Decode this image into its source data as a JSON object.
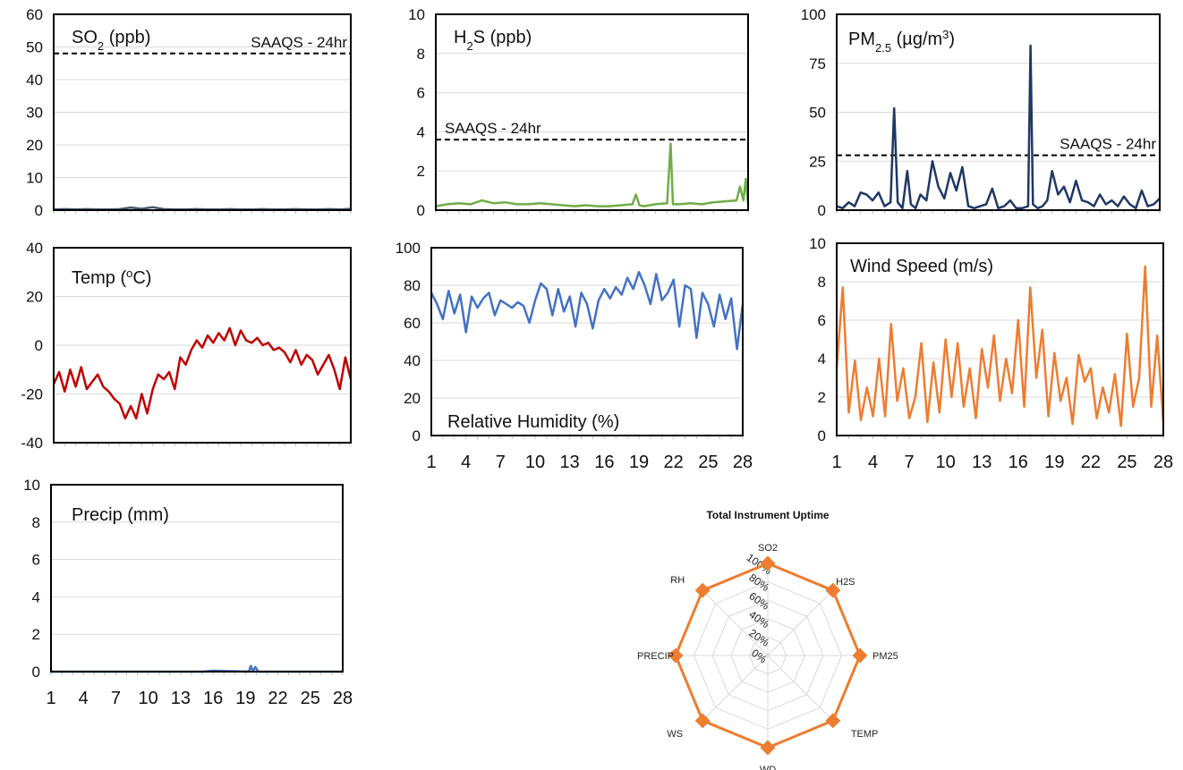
{
  "chart_data": [
    {
      "id": "so2",
      "type": "line",
      "title": "SO2 (ppb)",
      "title_main": "SO",
      "title_sub": "2",
      "title_rest": " (ppb)",
      "ylim": [
        0,
        60
      ],
      "yticks": [
        0,
        10,
        20,
        30,
        40,
        50,
        60
      ],
      "xticks": [],
      "color": "#44546a",
      "series": [
        {
          "x": [
            1,
            2,
            3,
            4,
            5,
            6,
            7,
            8,
            9,
            10,
            11,
            12,
            13,
            14,
            15,
            16,
            17,
            18,
            19,
            20,
            21,
            22,
            23,
            24,
            25,
            26,
            27,
            28
          ],
          "values": [
            0.2,
            0.3,
            0.2,
            0.3,
            0.2,
            0.2,
            0.3,
            0.8,
            0.4,
            0.9,
            0.3,
            0.2,
            0.2,
            0.3,
            0.2,
            0.2,
            0.3,
            0.2,
            0.2,
            0.3,
            0.2,
            0.2,
            0.3,
            0.2,
            0.2,
            0.3,
            0.2,
            0.4
          ]
        }
      ],
      "reference_line": {
        "value": 48,
        "label": "SAAQS - 24hr",
        "label_pos": "top-right"
      }
    },
    {
      "id": "h2s",
      "type": "line",
      "title": "H2S (ppb)",
      "title_main": "H",
      "title_sub": "2",
      "title_rest": "S (ppb)",
      "ylim": [
        0,
        10
      ],
      "yticks": [
        0,
        2,
        4,
        6,
        8,
        10
      ],
      "xticks": [],
      "color": "#70ad47",
      "series": [
        {
          "x": [
            1,
            2,
            3,
            4,
            5,
            6,
            7,
            8,
            9,
            10,
            11,
            12,
            13,
            14,
            15,
            16,
            17,
            18,
            18.3,
            18.6,
            19,
            20,
            21,
            21.3,
            21.5,
            22,
            23,
            24,
            25,
            26,
            27,
            27.3,
            27.6,
            27.8,
            28
          ],
          "values": [
            0.2,
            0.3,
            0.35,
            0.3,
            0.5,
            0.35,
            0.4,
            0.3,
            0.3,
            0.35,
            0.3,
            0.25,
            0.2,
            0.25,
            0.2,
            0.2,
            0.25,
            0.3,
            0.8,
            0.25,
            0.2,
            0.3,
            0.35,
            3.4,
            0.3,
            0.3,
            0.35,
            0.3,
            0.4,
            0.45,
            0.5,
            1.2,
            0.5,
            1.6,
            0.3
          ]
        }
      ],
      "reference_line": {
        "value": 3.6,
        "label": "SAAQS - 24hr",
        "label_pos": "top-left"
      }
    },
    {
      "id": "pm25",
      "type": "line",
      "title": "PM2.5 (µg/m3)",
      "title_main": "PM",
      "title_sub": "2.5",
      "title_rest": " (µg/m",
      "title_sup": "3",
      "title_end": ")",
      "ylim": [
        0,
        100
      ],
      "yticks": [
        0,
        25,
        50,
        75,
        100
      ],
      "xticks": [],
      "color": "#1f3864",
      "series": [
        {
          "x": [
            1,
            1.5,
            2,
            2.5,
            3,
            3.5,
            4,
            4.5,
            5,
            5.5,
            5.8,
            6.1,
            6.5,
            6.9,
            7.2,
            7.6,
            8,
            8.5,
            9,
            9.5,
            10,
            10.5,
            11,
            11.5,
            12,
            12.5,
            13,
            13.5,
            14,
            14.5,
            15,
            15.5,
            16,
            16.5,
            17,
            17.2,
            17.4,
            17.8,
            18.2,
            18.6,
            19,
            19.5,
            20,
            20.5,
            21,
            21.5,
            22,
            22.5,
            23,
            23.5,
            24,
            24.5,
            25,
            25.5,
            26,
            26.5,
            27,
            27.5,
            28
          ],
          "values": [
            2,
            1,
            4,
            2,
            9,
            8,
            5,
            9,
            2,
            4,
            52,
            4,
            1,
            20,
            3,
            1,
            8,
            5,
            25,
            12,
            6,
            19,
            10,
            22,
            2,
            1,
            2,
            3,
            11,
            1,
            2,
            5,
            1,
            1,
            2,
            84,
            3,
            1,
            2,
            5,
            20,
            8,
            12,
            4,
            15,
            5,
            4,
            2,
            8,
            3,
            5,
            2,
            7,
            3,
            1,
            10,
            2,
            3,
            6
          ]
        }
      ],
      "reference_line": {
        "value": 28,
        "label": "SAAQS - 24hr",
        "label_pos": "top-right"
      }
    },
    {
      "id": "temp",
      "type": "line",
      "title": "Temp (oC)",
      "title_main": "Temp (",
      "title_sup": "o",
      "title_end": "C)",
      "ylim": [
        -40,
        40
      ],
      "yticks": [
        -40,
        -20,
        0,
        20,
        40
      ],
      "xticks": [],
      "color": "#c00000",
      "series": [
        {
          "x": [
            1,
            1.5,
            2,
            2.5,
            3,
            3.5,
            4,
            4.5,
            5,
            5.5,
            6,
            6.5,
            7,
            7.5,
            8,
            8.5,
            9,
            9.5,
            10,
            10.5,
            11,
            11.5,
            12,
            12.5,
            13,
            13.5,
            14,
            14.5,
            15,
            15.5,
            16,
            16.5,
            17,
            17.5,
            18,
            18.5,
            19,
            19.5,
            20,
            20.5,
            21,
            21.5,
            22,
            22.5,
            23,
            23.5,
            24,
            24.5,
            25,
            25.5,
            26,
            26.5,
            27,
            27.5,
            28
          ],
          "values": [
            -16,
            -11,
            -19,
            -10,
            -17,
            -9,
            -18,
            -15,
            -12,
            -17,
            -19,
            -22,
            -24,
            -30,
            -25,
            -30,
            -20,
            -28,
            -18,
            -12,
            -14,
            -11,
            -18,
            -5,
            -8,
            -2,
            2,
            -1,
            4,
            1,
            5,
            2,
            7,
            0,
            6,
            2,
            1,
            3,
            0,
            1,
            -2,
            -1,
            -3,
            -7,
            -2,
            -8,
            -4,
            -6,
            -12,
            -8,
            -4,
            -10,
            -18,
            -5,
            -14
          ]
        }
      ]
    },
    {
      "id": "rh",
      "type": "line",
      "title": "Relative Humidity (%)",
      "ylim": [
        0,
        100
      ],
      "yticks": [
        0,
        20,
        40,
        60,
        80,
        100
      ],
      "xticks": [
        1,
        4,
        7,
        10,
        13,
        16,
        19,
        22,
        25,
        28
      ],
      "color": "#4472c4",
      "series": [
        {
          "x": [
            1,
            1.5,
            2,
            2.5,
            3,
            3.5,
            4,
            4.5,
            5,
            5.5,
            6,
            6.5,
            7,
            7.5,
            8,
            8.5,
            9,
            9.5,
            10,
            10.5,
            11,
            11.5,
            12,
            12.5,
            13,
            13.5,
            14,
            14.5,
            15,
            15.5,
            16,
            16.5,
            17,
            17.5,
            18,
            18.5,
            19,
            19.5,
            20,
            20.5,
            21,
            21.5,
            22,
            22.5,
            23,
            23.5,
            24,
            24.5,
            25,
            25.5,
            26,
            26.5,
            27,
            27.5,
            28
          ],
          "values": [
            76,
            70,
            62,
            77,
            65,
            75,
            55,
            74,
            68,
            73,
            76,
            64,
            72,
            70,
            68,
            71,
            69,
            60,
            72,
            81,
            78,
            64,
            78,
            66,
            74,
            58,
            76,
            70,
            57,
            72,
            78,
            73,
            79,
            75,
            84,
            78,
            87,
            80,
            70,
            86,
            72,
            76,
            83,
            58,
            80,
            78,
            52,
            76,
            70,
            58,
            75,
            62,
            73,
            46,
            70
          ]
        }
      ]
    },
    {
      "id": "ws",
      "type": "line",
      "title": "Wind Speed (m/s)",
      "ylim": [
        0,
        10
      ],
      "yticks": [
        0,
        2,
        4,
        6,
        8,
        10
      ],
      "xticks": [
        1,
        4,
        7,
        10,
        13,
        16,
        19,
        22,
        25,
        28
      ],
      "color": "#ed7d31",
      "series": [
        {
          "x": [
            1,
            1.5,
            2,
            2.5,
            3,
            3.5,
            4,
            4.5,
            5,
            5.5,
            6,
            6.5,
            7,
            7.5,
            8,
            8.5,
            9,
            9.5,
            10,
            10.5,
            11,
            11.5,
            12,
            12.5,
            13,
            13.5,
            14,
            14.5,
            15,
            15.5,
            16,
            16.5,
            17,
            17.5,
            18,
            18.5,
            19,
            19.5,
            20,
            20.5,
            21,
            21.5,
            22,
            22.5,
            23,
            23.5,
            24,
            24.5,
            25,
            25.5,
            26,
            26.5,
            27,
            27.5,
            28
          ],
          "values": [
            3.5,
            7.7,
            1.2,
            3.9,
            0.8,
            2.5,
            1.0,
            4.0,
            1.0,
            5.8,
            1.8,
            3.5,
            0.9,
            2.0,
            4.8,
            0.7,
            3.8,
            1.2,
            5.0,
            2.0,
            4.8,
            1.5,
            3.5,
            0.9,
            4.5,
            2.5,
            5.2,
            1.8,
            4.0,
            2.2,
            6.0,
            1.5,
            7.7,
            3.0,
            5.5,
            1.0,
            4.3,
            1.8,
            3.0,
            0.6,
            4.2,
            2.8,
            3.5,
            0.9,
            2.5,
            1.2,
            3.2,
            0.5,
            5.3,
            1.5,
            3.0,
            8.8,
            1.5,
            5.2,
            0.7
          ]
        }
      ]
    },
    {
      "id": "precip",
      "type": "line",
      "title": "Precip (mm)",
      "ylim": [
        0,
        10
      ],
      "yticks": [
        0,
        2,
        4,
        6,
        8,
        10
      ],
      "xticks": [
        1,
        4,
        7,
        10,
        13,
        16,
        19,
        22,
        25,
        28
      ],
      "color": "#4472c4",
      "series": [
        {
          "x": [
            1,
            5,
            10,
            15,
            16,
            19.3,
            19.5,
            19.7,
            19.9,
            20.2,
            22,
            25,
            28
          ],
          "values": [
            0,
            0,
            0,
            0,
            0.05,
            0,
            0.3,
            0,
            0.25,
            0,
            0,
            0,
            0
          ]
        }
      ]
    },
    {
      "id": "uptime",
      "type": "radar",
      "title": "Total Instrument Uptime",
      "axes": [
        "SO2",
        "H2S",
        "PM25",
        "TEMP",
        "WD",
        "WS",
        "PRECIP",
        "RH"
      ],
      "rticks": [
        "0%",
        "20%",
        "40%",
        "60%",
        "80%",
        "100%"
      ],
      "rlim": [
        0,
        100
      ],
      "color": "#ed7d31",
      "series": [
        {
          "values": [
            100,
            100,
            100,
            100,
            100,
            100,
            100,
            100
          ]
        }
      ]
    }
  ]
}
